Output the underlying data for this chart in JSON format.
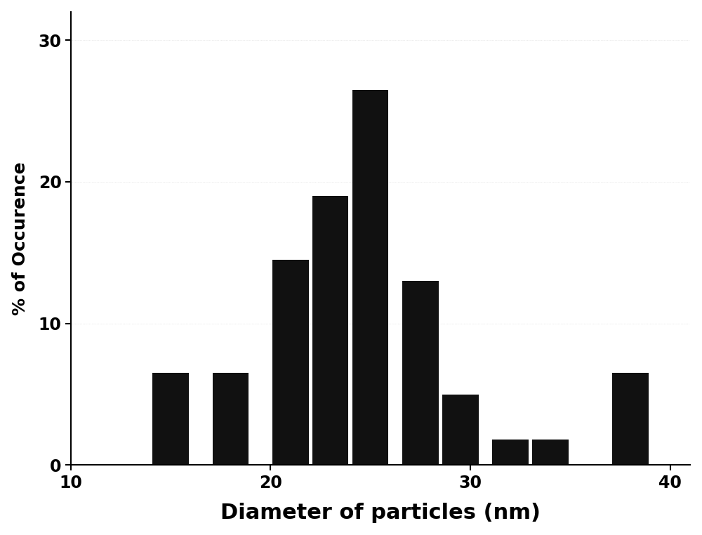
{
  "bar_centers": [
    15,
    18,
    21,
    23,
    25,
    27.5,
    29.5,
    32,
    34,
    38
  ],
  "bar_heights": [
    6.5,
    6.5,
    14.5,
    19.0,
    26.5,
    13.0,
    5.0,
    1.8,
    1.8,
    6.5
  ],
  "bar_width": 1.8,
  "bar_color": "#111111",
  "xlim": [
    10,
    41
  ],
  "ylim": [
    0,
    32
  ],
  "xticks": [
    10,
    20,
    30,
    40
  ],
  "yticks": [
    0,
    10,
    20,
    30
  ],
  "xlabel": "Diameter of particles (nm)",
  "ylabel": "% of Occurence",
  "xlabel_fontsize": 22,
  "ylabel_fontsize": 18,
  "tick_fontsize": 17,
  "background_color": "#ffffff",
  "figure_background": "#ffffff"
}
